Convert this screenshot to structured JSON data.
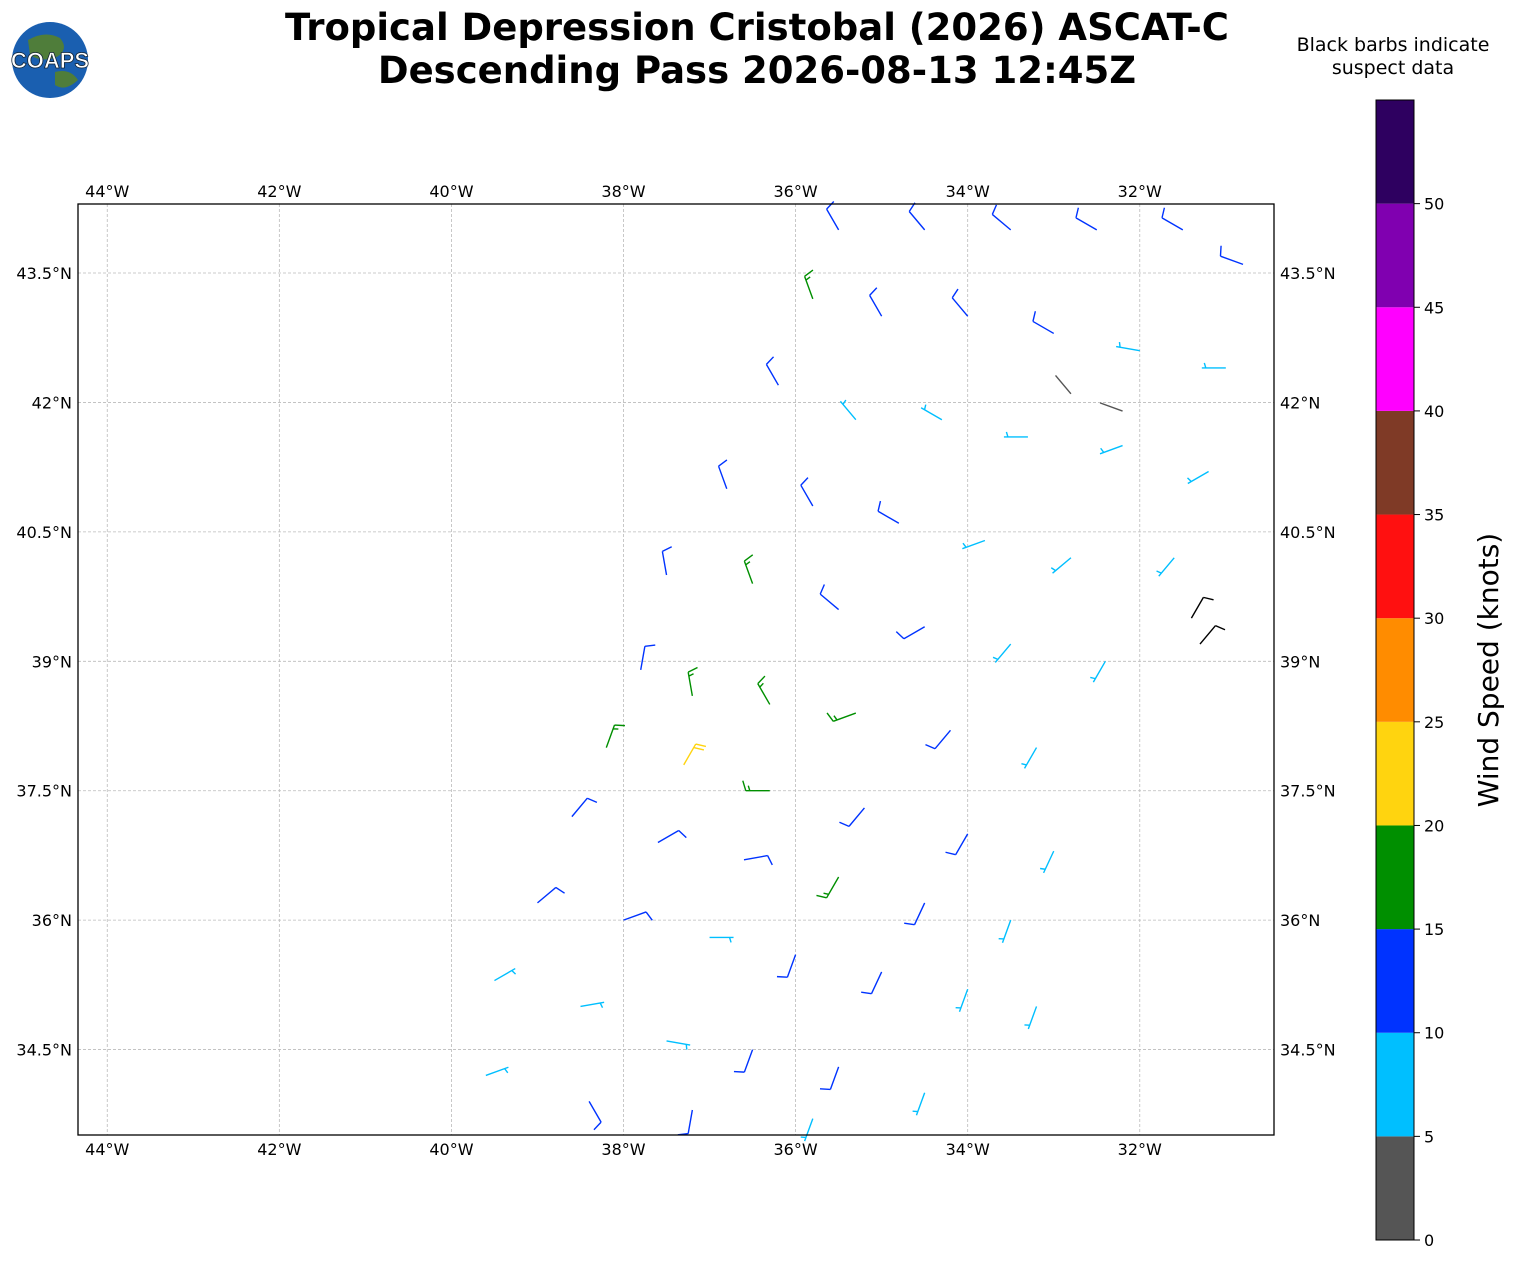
{
  "logo": "COAPS",
  "title": [
    "Tropical Depression Cristobal (2026) ASCAT-C",
    "Descending Pass 2026-08-13 12:45Z"
  ],
  "note": [
    "Black barbs indicate",
    "suspect data"
  ],
  "map": {
    "type": "wind-barbs",
    "xlim": [
      -44.34,
      -30.44
    ],
    "ylim": [
      33.51,
      44.3
    ],
    "xticks": [
      {
        "value": -44,
        "label": "44°W"
      },
      {
        "value": -42,
        "label": "42°W"
      },
      {
        "value": -40,
        "label": "40°W"
      },
      {
        "value": -38,
        "label": "38°W"
      },
      {
        "value": -36,
        "label": "36°W"
      },
      {
        "value": -34,
        "label": "34°W"
      },
      {
        "value": -32,
        "label": "32°W"
      }
    ],
    "yticks": [
      {
        "value": 34.5,
        "label": "34.5°N"
      },
      {
        "value": 36,
        "label": "36°N"
      },
      {
        "value": 37.5,
        "label": "37.5°N"
      },
      {
        "value": 39,
        "label": "39°N"
      },
      {
        "value": 40.5,
        "label": "40.5°N"
      },
      {
        "value": 42,
        "label": "42°N"
      },
      {
        "value": 43.5,
        "label": "43.5°N"
      }
    ],
    "grid": true,
    "suspect_color": "#000000",
    "barbs": [
      {
        "lon": -35.5,
        "lat": 44.0,
        "speed": 12,
        "dir": 330
      },
      {
        "lon": -34.5,
        "lat": 44.0,
        "speed": 12,
        "dir": 320
      },
      {
        "lon": -33.5,
        "lat": 44.0,
        "speed": 12,
        "dir": 310
      },
      {
        "lon": -32.5,
        "lat": 44.0,
        "speed": 12,
        "dir": 300
      },
      {
        "lon": -31.5,
        "lat": 44.0,
        "speed": 12,
        "dir": 300
      },
      {
        "lon": -30.8,
        "lat": 43.6,
        "speed": 13,
        "dir": 290
      },
      {
        "lon": -35.8,
        "lat": 43.2,
        "speed": 16,
        "dir": 340
      },
      {
        "lon": -35.0,
        "lat": 43.0,
        "speed": 12,
        "dir": 330
      },
      {
        "lon": -34.0,
        "lat": 43.0,
        "speed": 12,
        "dir": 320
      },
      {
        "lon": -33.0,
        "lat": 42.8,
        "speed": 11,
        "dir": 300
      },
      {
        "lon": -32.0,
        "lat": 42.6,
        "speed": 9,
        "dir": 280
      },
      {
        "lon": -31.0,
        "lat": 42.4,
        "speed": 8,
        "dir": 270
      },
      {
        "lon": -36.2,
        "lat": 42.2,
        "speed": 12,
        "dir": 330
      },
      {
        "lon": -35.3,
        "lat": 41.8,
        "speed": 8,
        "dir": 320
      },
      {
        "lon": -34.3,
        "lat": 41.8,
        "speed": 8,
        "dir": 300
      },
      {
        "lon": -33.3,
        "lat": 41.6,
        "speed": 9,
        "dir": 270
      },
      {
        "lon": -32.2,
        "lat": 41.5,
        "speed": 8,
        "dir": 250
      },
      {
        "lon": -31.2,
        "lat": 41.2,
        "speed": 7,
        "dir": 240
      },
      {
        "lon": -36.8,
        "lat": 41.0,
        "speed": 12,
        "dir": 340
      },
      {
        "lon": -35.8,
        "lat": 40.8,
        "speed": 13,
        "dir": 330
      },
      {
        "lon": -34.8,
        "lat": 40.6,
        "speed": 10,
        "dir": 300
      },
      {
        "lon": -33.8,
        "lat": 40.4,
        "speed": 9,
        "dir": 250
      },
      {
        "lon": -32.8,
        "lat": 40.2,
        "speed": 8,
        "dir": 230
      },
      {
        "lon": -31.6,
        "lat": 40.2,
        "speed": 7,
        "dir": 220
      },
      {
        "lon": -37.5,
        "lat": 40.0,
        "speed": 12,
        "dir": 350
      },
      {
        "lon": -36.5,
        "lat": 39.9,
        "speed": 16,
        "dir": 340
      },
      {
        "lon": -35.5,
        "lat": 39.6,
        "speed": 14,
        "dir": 310
      },
      {
        "lon": -34.5,
        "lat": 39.4,
        "speed": 11,
        "dir": 240
      },
      {
        "lon": -33.5,
        "lat": 39.2,
        "speed": 9,
        "dir": 220
      },
      {
        "lon": -32.4,
        "lat": 39.0,
        "speed": 8,
        "dir": 210
      },
      {
        "lon": -37.8,
        "lat": 38.9,
        "speed": 11,
        "dir": 10
      },
      {
        "lon": -37.2,
        "lat": 38.6,
        "speed": 17,
        "dir": 350
      },
      {
        "lon": -36.3,
        "lat": 38.5,
        "speed": 17,
        "dir": 330
      },
      {
        "lon": -35.3,
        "lat": 38.4,
        "speed": 16,
        "dir": 250
      },
      {
        "lon": -34.2,
        "lat": 38.2,
        "speed": 12,
        "dir": 220
      },
      {
        "lon": -33.2,
        "lat": 38.0,
        "speed": 8,
        "dir": 210
      },
      {
        "lon": -38.2,
        "lat": 38.0,
        "speed": 17,
        "dir": 20
      },
      {
        "lon": -37.3,
        "lat": 37.8,
        "speed": 21,
        "dir": 30
      },
      {
        "lon": -36.3,
        "lat": 37.5,
        "speed": 16,
        "dir": 270
      },
      {
        "lon": -35.2,
        "lat": 37.3,
        "speed": 12,
        "dir": 220
      },
      {
        "lon": -34.0,
        "lat": 37.0,
        "speed": 11,
        "dir": 210
      },
      {
        "lon": -33.0,
        "lat": 36.8,
        "speed": 8,
        "dir": 205
      },
      {
        "lon": -38.6,
        "lat": 37.2,
        "speed": 12,
        "dir": 40
      },
      {
        "lon": -37.6,
        "lat": 36.9,
        "speed": 13,
        "dir": 60
      },
      {
        "lon": -36.6,
        "lat": 36.7,
        "speed": 12,
        "dir": 80
      },
      {
        "lon": -35.5,
        "lat": 36.5,
        "speed": 17,
        "dir": 210
      },
      {
        "lon": -34.5,
        "lat": 36.2,
        "speed": 11,
        "dir": 205
      },
      {
        "lon": -33.5,
        "lat": 36.0,
        "speed": 8,
        "dir": 200
      },
      {
        "lon": -39.0,
        "lat": 36.2,
        "speed": 12,
        "dir": 50
      },
      {
        "lon": -38.0,
        "lat": 36.0,
        "speed": 13,
        "dir": 70
      },
      {
        "lon": -37.0,
        "lat": 35.8,
        "speed": 8,
        "dir": 90
      },
      {
        "lon": -36.0,
        "lat": 35.6,
        "speed": 11,
        "dir": 200
      },
      {
        "lon": -35.0,
        "lat": 35.4,
        "speed": 11,
        "dir": 205
      },
      {
        "lon": -34.0,
        "lat": 35.2,
        "speed": 8,
        "dir": 200
      },
      {
        "lon": -33.2,
        "lat": 35.0,
        "speed": 7,
        "dir": 200
      },
      {
        "lon": -39.5,
        "lat": 35.3,
        "speed": 8,
        "dir": 60
      },
      {
        "lon": -38.5,
        "lat": 35.0,
        "speed": 8,
        "dir": 80
      },
      {
        "lon": -37.5,
        "lat": 34.6,
        "speed": 8,
        "dir": 100
      },
      {
        "lon": -36.5,
        "lat": 34.5,
        "speed": 12,
        "dir": 200
      },
      {
        "lon": -35.5,
        "lat": 34.3,
        "speed": 10,
        "dir": 200
      },
      {
        "lon": -34.5,
        "lat": 34.0,
        "speed": 8,
        "dir": 200
      },
      {
        "lon": -39.6,
        "lat": 34.2,
        "speed": 7,
        "dir": 70
      },
      {
        "lon": -38.4,
        "lat": 33.9,
        "speed": 12,
        "dir": 150
      },
      {
        "lon": -37.2,
        "lat": 33.8,
        "speed": 12,
        "dir": 190
      },
      {
        "lon": -35.8,
        "lat": 33.7,
        "speed": 9,
        "dir": 200
      },
      {
        "lon": -32.8,
        "lat": 42.1,
        "speed": 3,
        "dir": 320
      },
      {
        "lon": -32.2,
        "lat": 41.9,
        "speed": 4,
        "dir": 290
      },
      {
        "lon": -31.4,
        "lat": 39.5,
        "speed": 12,
        "dir": 30,
        "suspect": true
      },
      {
        "lon": -31.3,
        "lat": 39.2,
        "speed": 14,
        "dir": 40,
        "suspect": true
      }
    ]
  },
  "colorbar": {
    "label": "Wind Speed (knots)",
    "clim": [
      0,
      55
    ],
    "levels": [
      0,
      5,
      10,
      15,
      20,
      25,
      30,
      35,
      40,
      45,
      50,
      55
    ],
    "colors": [
      "#555555",
      "#00bfff",
      "#0033ff",
      "#008f00",
      "#ffd40f",
      "#ff8c00",
      "#ff1010",
      "#7f3a26",
      "#ff00ff",
      "#8000b0",
      "#2e0060"
    ],
    "ticks": [
      0,
      5,
      10,
      15,
      20,
      25,
      30,
      35,
      40,
      45,
      50
    ]
  }
}
